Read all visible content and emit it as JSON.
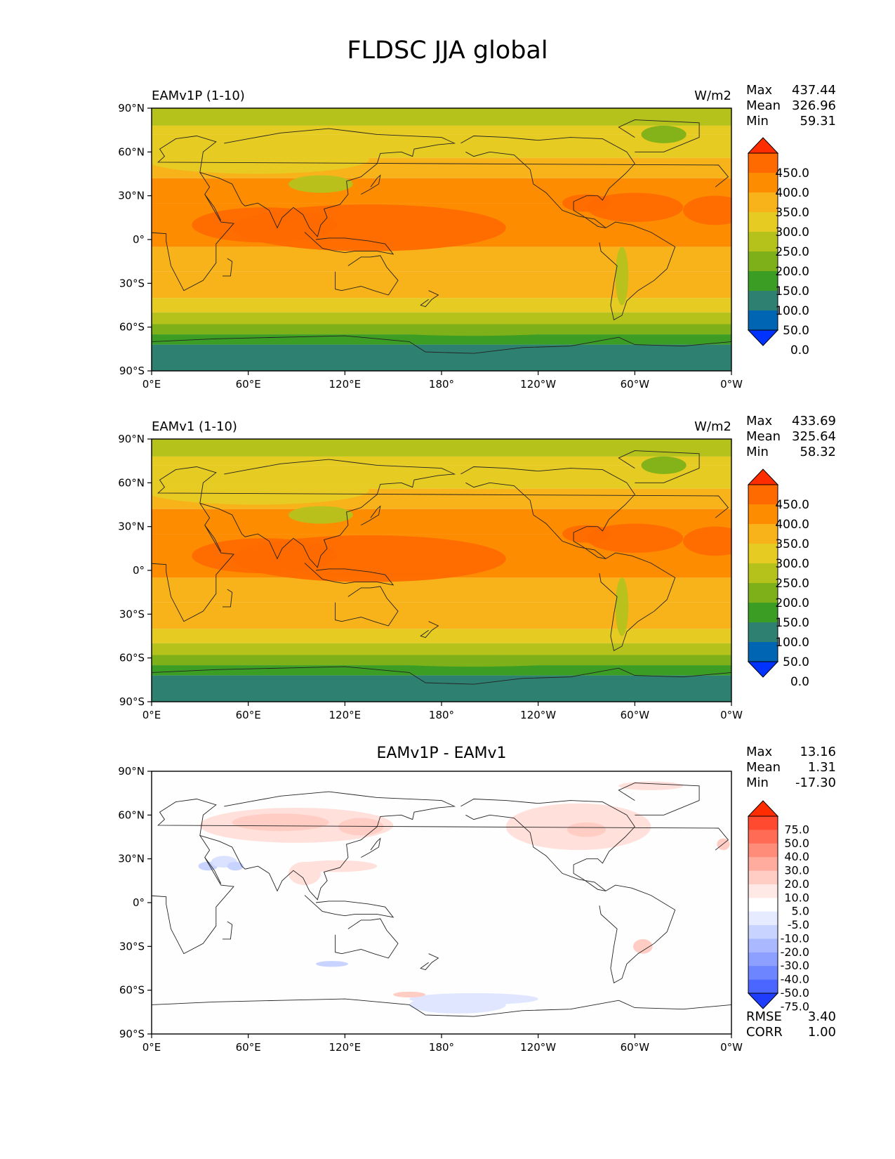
{
  "title": "FLDSC JJA global",
  "panels": [
    {
      "label": "EAMv1P (1-10)",
      "units": "W/m2",
      "stats": {
        "max_label": "Max",
        "max": "437.44",
        "mean_label": "Mean",
        "mean": "326.96",
        "min_label": "Min",
        "min": "59.31"
      },
      "colorbar": {
        "labels": [
          "450.0",
          "400.0",
          "350.0",
          "300.0",
          "250.0",
          "200.0",
          "150.0",
          "100.0",
          "50.0",
          "0.0"
        ],
        "colors": [
          "#ff2d00",
          "#ff6a00",
          "#fe8c00",
          "#f8b21a",
          "#e6cb23",
          "#b5c21c",
          "#7eb019",
          "#3c9d25",
          "#2e8070",
          "#0065b2",
          "#0033ff"
        ]
      }
    },
    {
      "label": "EAMv1 (1-10)",
      "units": "W/m2",
      "stats": {
        "max_label": "Max",
        "max": "433.69",
        "mean_label": "Mean",
        "mean": "325.64",
        "min_label": "Min",
        "min": "58.32"
      },
      "colorbar": {
        "labels": [
          "450.0",
          "400.0",
          "350.0",
          "300.0",
          "250.0",
          "200.0",
          "150.0",
          "100.0",
          "50.0",
          "0.0"
        ],
        "colors": [
          "#ff2d00",
          "#ff6a00",
          "#fe8c00",
          "#f8b21a",
          "#e6cb23",
          "#b5c21c",
          "#7eb019",
          "#3c9d25",
          "#2e8070",
          "#0065b2",
          "#0033ff"
        ]
      }
    },
    {
      "label": "EAMv1P - EAMv1",
      "stats": {
        "max_label": "Max",
        "max": "13.16",
        "mean_label": "Mean",
        "mean": "1.31",
        "min_label": "Min",
        "min": "-17.30"
      },
      "metrics": {
        "rmse_label": "RMSE",
        "rmse": "3.40",
        "corr_label": "CORR",
        "corr": "1.00"
      },
      "colorbar": {
        "labels": [
          "75.0",
          "50.0",
          "40.0",
          "30.0",
          "20.0",
          "10.0",
          "5.0",
          "-5.0",
          "-10.0",
          "-20.0",
          "-30.0",
          "-40.0",
          "-50.0",
          "-75.0"
        ],
        "colors": [
          "#ff2d00",
          "#ff4a30",
          "#ff6b55",
          "#ff8c78",
          "#ffab9e",
          "#ffcdc4",
          "#ffe9e6",
          "#ffffff",
          "#e6ebff",
          "#c8d3ff",
          "#aab9ff",
          "#8da0ff",
          "#6d85ff",
          "#4b66ff",
          "#1f3dff"
        ]
      }
    }
  ],
  "axes": {
    "x_ticks": [
      "0°E",
      "60°E",
      "120°E",
      "180°",
      "120°W",
      "60°W",
      "0°W"
    ],
    "y_ticks": [
      "90°N",
      "60°N",
      "30°N",
      "0°",
      "30°S",
      "60°S",
      "90°S"
    ]
  }
}
